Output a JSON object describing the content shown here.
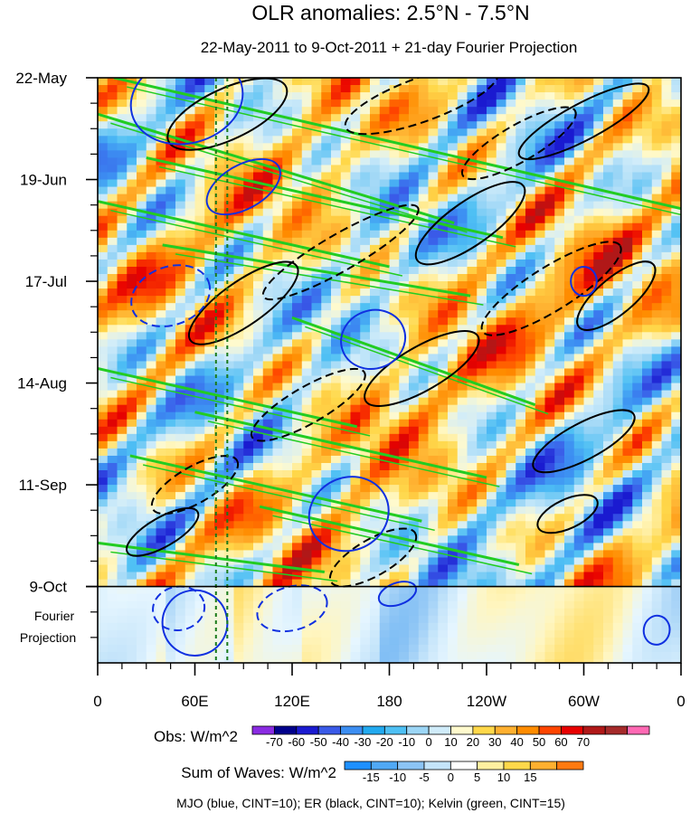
{
  "chart_data": {
    "type": "heatmap",
    "title": "OLR anomalies: 2.5°N - 7.5°N",
    "subtitle": "22-May-2011 to 9-Oct-2011 + 21-day Fourier Projection",
    "x_ticks": [
      "0",
      "60E",
      "120E",
      "180",
      "120W",
      "60W",
      "0"
    ],
    "x_range_deg_east": [
      0,
      360
    ],
    "y_ticks": [
      "22-May",
      "19-Jun",
      "17-Jul",
      "14-Aug",
      "11-Sep",
      "9-Oct"
    ],
    "y_tick_days": [
      0,
      28,
      56,
      84,
      112,
      140
    ],
    "y_range_days": [
      0,
      161
    ],
    "projection_label_line1": "Fourier",
    "projection_label_line2": "Projection",
    "projection_start_day": 140,
    "reference_lines_deg_east": [
      73,
      80
    ],
    "obs_colorbar": {
      "label": "Obs: W/m^2",
      "ticks": [
        "-70",
        "-60",
        "-50",
        "-40",
        "-30",
        "-20",
        "-10",
        "0",
        "10",
        "20",
        "30",
        "40",
        "50",
        "60",
        "70"
      ],
      "colors": [
        "#8a2be2",
        "#00008b",
        "#1a1ad0",
        "#3a5ae8",
        "#3c8ef2",
        "#22aaf0",
        "#4ec0f4",
        "#9cd6f6",
        "#d0ecfa",
        "#fffacd",
        "#ffd84a",
        "#ffb030",
        "#ff8c00",
        "#ff4500",
        "#e80000",
        "#b01818",
        "#a52a2a",
        "#ff69b4"
      ]
    },
    "waves_colorbar": {
      "label": "Sum of Waves: W/m^2",
      "ticks": [
        "-15",
        "-10",
        "-5",
        "0",
        "5",
        "10",
        "15"
      ],
      "colors": [
        "#1e90ff",
        "#50a8f5",
        "#8cc4f5",
        "#c4e4fa",
        "#ffffff",
        "#fff0a0",
        "#ffd84a",
        "#ffb030",
        "#ff7a10"
      ]
    },
    "contours_legend": "MJO (blue, CINT=10); ER (black, CINT=10); Kelvin (green, CINT=15)",
    "series": [
      {
        "name": "MJO",
        "color": "#1030e0",
        "cint": 10
      },
      {
        "name": "ER",
        "color": "#000000",
        "cint": 10
      },
      {
        "name": "Kelvin",
        "color": "#22cc22",
        "cint": 15
      }
    ]
  }
}
